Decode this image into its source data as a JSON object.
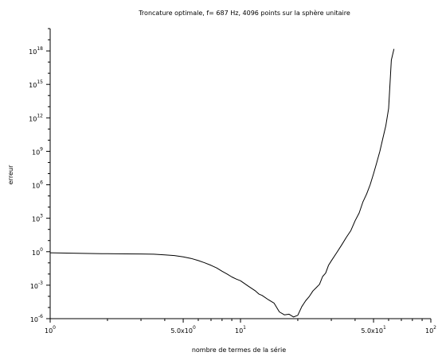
{
  "chart_data": {
    "type": "line",
    "title": "Troncature optimale, f=   687   Hz, 4096 points sur la sphère unitaire",
    "xlabel": "nombre de termes de la série",
    "ylabel": "erreur",
    "x_scale": "log",
    "y_scale": "log",
    "xlim": [
      1,
      100
    ],
    "ylim": [
      1e-06,
      1e+20
    ],
    "x_ticks": [
      {
        "value": 1,
        "base": "10",
        "exp": "0"
      },
      {
        "value": 5,
        "base": "5.0x10",
        "exp": "0"
      },
      {
        "value": 10,
        "base": "10",
        "exp": "1"
      },
      {
        "value": 50,
        "base": "5.0x10",
        "exp": "1"
      },
      {
        "value": 100,
        "base": "10",
        "exp": "2"
      }
    ],
    "y_ticks": [
      {
        "value": 1e-06,
        "base": "10",
        "exp": "-6"
      },
      {
        "value": 0.001,
        "base": "10",
        "exp": "-3"
      },
      {
        "value": 1,
        "base": "10",
        "exp": "0"
      },
      {
        "value": 1000.0,
        "base": "10",
        "exp": "3"
      },
      {
        "value": 1000000.0,
        "base": "10",
        "exp": "6"
      },
      {
        "value": 1000000000.0,
        "base": "10",
        "exp": "9"
      },
      {
        "value": 1000000000000.0,
        "base": "10",
        "exp": "12"
      },
      {
        "value": 1000000000000000.0,
        "base": "10",
        "exp": "15"
      },
      {
        "value": 1e+18,
        "base": "10",
        "exp": "18"
      }
    ],
    "grid": false,
    "series": [
      {
        "color": "#000000",
        "x": [
          1,
          1.5,
          2,
          2.5,
          3,
          3.5,
          4,
          4.5,
          5,
          5.5,
          6,
          6.5,
          7,
          7.5,
          8,
          8.5,
          9,
          9.5,
          10,
          11,
          12,
          12.5,
          13,
          14,
          15,
          16,
          17,
          18,
          19,
          20,
          21,
          22,
          23,
          24,
          25,
          26,
          27,
          28,
          29,
          30,
          32,
          34,
          36,
          38,
          40,
          42,
          44,
          46,
          48,
          50,
          52,
          54,
          56,
          58,
          60,
          62,
          64
        ],
        "y": [
          0.8,
          0.7,
          0.66,
          0.64,
          0.63,
          0.6,
          0.52,
          0.45,
          0.35,
          0.25,
          0.16,
          0.1,
          0.06,
          0.035,
          0.018,
          0.01,
          0.0055,
          0.0035,
          0.0025,
          0.0008,
          0.0003,
          0.00016,
          0.00012,
          5e-05,
          2.5e-05,
          4e-06,
          2.2e-06,
          2.5e-06,
          1.4e-06,
          2e-06,
          1.2e-05,
          4e-05,
          0.0001,
          0.0003,
          0.0006,
          0.0012,
          0.006,
          0.012,
          0.06,
          0.15,
          0.8,
          4,
          20,
          80,
          600,
          3000,
          30000,
          150000,
          1000000,
          10000000,
          100000000,
          1000000000,
          15000000000,
          200000000000,
          7000000000000,
          150000000000000000,
          1500000000000000000
        ]
      }
    ]
  }
}
